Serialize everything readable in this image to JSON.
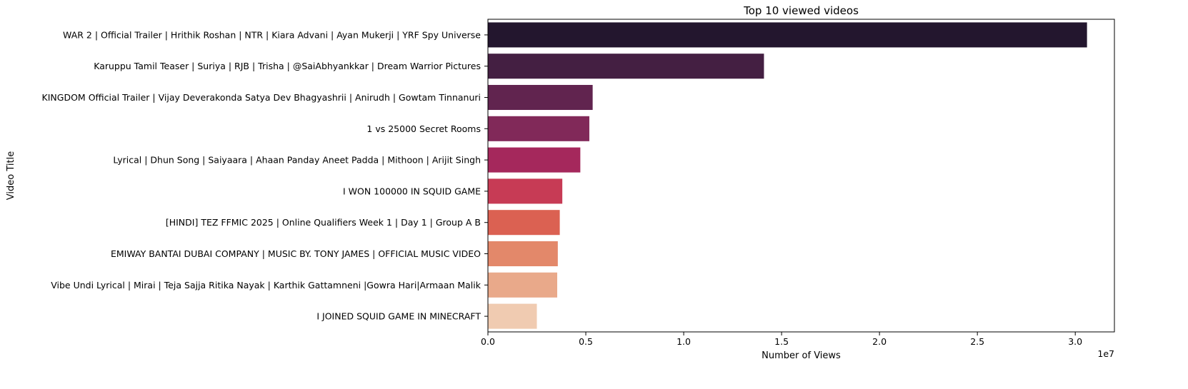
{
  "chart_data": {
    "type": "bar",
    "orientation": "horizontal",
    "title": "Top 10 viewed videos",
    "xlabel": "Number of Views",
    "ylabel": "Video Title",
    "x_offset_label": "1e7",
    "xlim": [
      0,
      32000000
    ],
    "xticks": [
      {
        "value": 0,
        "label": "0.0"
      },
      {
        "value": 5000000,
        "label": "0.5"
      },
      {
        "value": 10000000,
        "label": "1.0"
      },
      {
        "value": 15000000,
        "label": "1.5"
      },
      {
        "value": 20000000,
        "label": "2.0"
      },
      {
        "value": 25000000,
        "label": "2.5"
      },
      {
        "value": 30000000,
        "label": "3.0"
      }
    ],
    "grid": false,
    "categories": [
      "WAR 2 | Official Trailer | Hrithik Roshan | NTR | Kiara Advani | Ayan Mukerji | YRF Spy Universe",
      "Karuppu Tamil  Teaser | Suriya | RJB | Trisha | @SaiAbhyankkar | Dream Warrior Pictures",
      "KINGDOM Official Trailer | Vijay Deverakonda Satya Dev Bhagyashrii | Anirudh | Gowtam Tinnanuri",
      "1 vs 25000 Secret Rooms",
      "Lyrical | Dhun Song | Saiyaara | Ahaan Panday Aneet Padda | Mithoon | Arijit Singh",
      "I WON 100000 IN SQUID GAME",
      "[HINDI] TEZ FFMIC 2025 | Online Qualifiers  Week 1 | Day 1 | Group A  B",
      "EMIWAY BANTAI   DUBAI COMPANY | MUSIC BY. TONY JAMES  | OFFICIAL MUSIC VIDEO",
      "Vibe Undi  Lyrical | Mirai | Teja Sajja Ritika Nayak | Karthik Gattamneni |Gowra Hari|Armaan Malik",
      "I JOINED SQUID GAME IN MINECRAFT"
    ],
    "values": [
      30600000,
      14100000,
      5350000,
      5180000,
      4720000,
      3800000,
      3670000,
      3570000,
      3540000,
      2500000
    ],
    "colors": [
      "#23162e",
      "#441f42",
      "#61244f",
      "#812959",
      "#a5285c",
      "#c73b55",
      "#db6152",
      "#e3886a",
      "#e9a98a",
      "#f0cbb1"
    ]
  }
}
